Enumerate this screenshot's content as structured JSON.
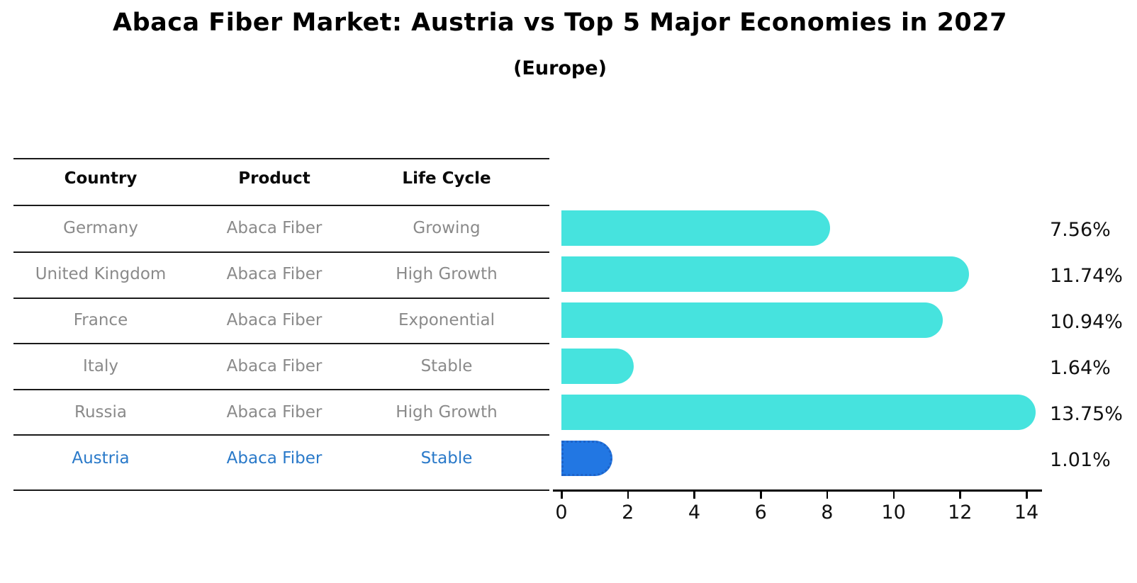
{
  "title": "Abaca Fiber Market: Austria vs Top 5 Major Economies in 2027",
  "subtitle": "(Europe)",
  "table": {
    "headers": [
      "Country",
      "Product",
      "Life Cycle"
    ],
    "rows": [
      {
        "country": "Germany",
        "product": "Abaca Fiber",
        "life_cycle": "Growing",
        "highlighted": false
      },
      {
        "country": "United Kingdom",
        "product": "Abaca Fiber",
        "life_cycle": "High Growth",
        "highlighted": false
      },
      {
        "country": "France",
        "product": "Abaca Fiber",
        "life_cycle": "Exponential",
        "highlighted": false
      },
      {
        "country": "Italy",
        "product": "Abaca Fiber",
        "life_cycle": "Stable",
        "highlighted": false
      },
      {
        "country": "Russia",
        "product": "Abaca Fiber",
        "life_cycle": "High Growth",
        "highlighted": false
      },
      {
        "country": "Austria",
        "product": "Abaca Fiber",
        "life_cycle": "Stable",
        "highlighted": true
      }
    ]
  },
  "chart_data": {
    "type": "bar",
    "orientation": "horizontal",
    "title": "Abaca Fiber Market: Austria vs Top 5 Major Economies in 2027",
    "subtitle": "(Europe)",
    "categories": [
      "Germany",
      "United Kingdom",
      "France",
      "Italy",
      "Russia",
      "Austria"
    ],
    "values": [
      7.56,
      11.74,
      10.94,
      1.64,
      13.75,
      1.01
    ],
    "value_labels": [
      "7.56%",
      "11.74%",
      "10.94%",
      "1.64%",
      "13.75%",
      "1.01%"
    ],
    "xlabel": "",
    "ylabel": "",
    "xlim": [
      0,
      14.5
    ],
    "xticks": [
      "0",
      "2",
      "4",
      "6",
      "8",
      "10",
      "12",
      "14"
    ],
    "grid": false,
    "legend": "none",
    "bar_color": "#46e3de",
    "highlight_color": "#2277e3",
    "highlight_index": 5,
    "annotation": "Austria bar drawn with dotted outline"
  }
}
